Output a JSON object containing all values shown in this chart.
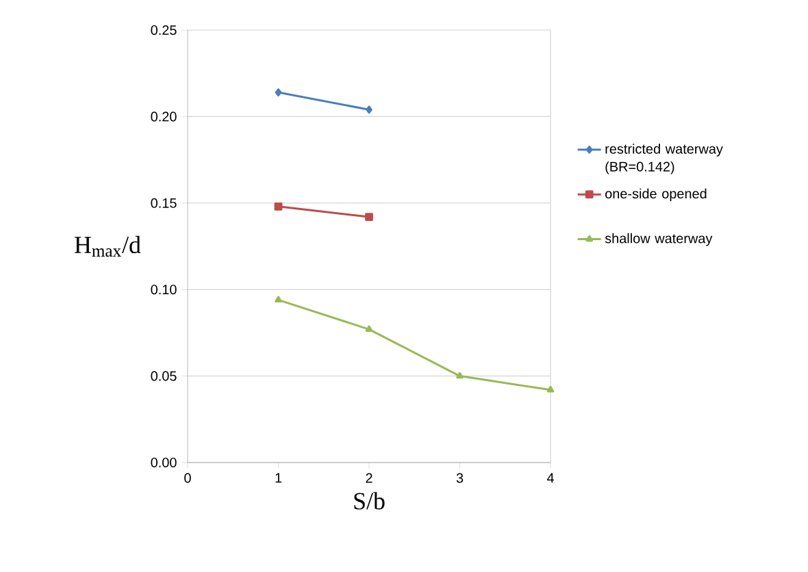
{
  "chart_data": {
    "type": "line",
    "xlabel": "S/b",
    "ylabel": "H$_{max}$/d",
    "xlim": [
      0,
      4
    ],
    "xticks": [
      0,
      1,
      2,
      3,
      4
    ],
    "ylim": [
      0,
      0.25
    ],
    "yticks": [
      {
        "value": 0,
        "label": "0.00"
      },
      {
        "value": 0.05,
        "label": "0.05"
      },
      {
        "value": 0.1,
        "label": "0.10"
      },
      {
        "value": 0.15,
        "label": "0.15"
      },
      {
        "value": 0.2,
        "label": "0.20"
      },
      {
        "value": 0.25,
        "label": "0.25"
      }
    ],
    "grid": "y",
    "legend": "right",
    "line_style": "solid",
    "series": [
      {
        "name": "restricted waterway (BR=0.142)",
        "color": "#4a7ebb",
        "marker": "diamond",
        "x": [
          1,
          2
        ],
        "values": [
          0.214,
          0.204
        ]
      },
      {
        "name": "one-side opened",
        "color": "#be4b48",
        "marker": "square",
        "x": [
          1,
          2
        ],
        "values": [
          0.148,
          0.142
        ]
      },
      {
        "name": "shallow waterway",
        "color": "#98b954",
        "marker": "triangle",
        "x": [
          1,
          2,
          3,
          4
        ],
        "values": [
          0.094,
          0.077,
          0.05,
          0.042
        ]
      }
    ]
  }
}
